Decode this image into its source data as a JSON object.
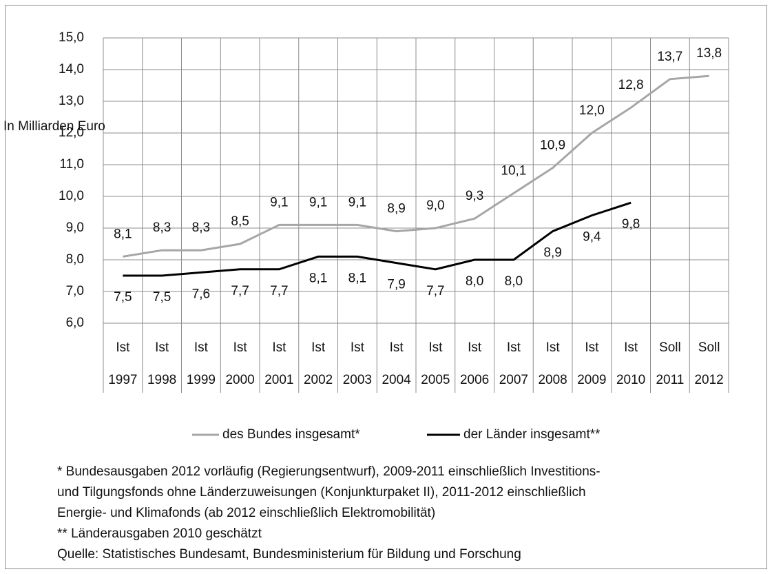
{
  "chart_data": {
    "type": "line",
    "y_label": "In Milliarden Euro",
    "categories": [
      "1997",
      "1998",
      "1999",
      "2000",
      "2001",
      "2002",
      "2003",
      "2004",
      "2005",
      "2006",
      "2007",
      "2008",
      "2009",
      "2010",
      "2011",
      "2012"
    ],
    "category_status": [
      "Ist",
      "Ist",
      "Ist",
      "Ist",
      "Ist",
      "Ist",
      "Ist",
      "Ist",
      "Ist",
      "Ist",
      "Ist",
      "Ist",
      "Ist",
      "Ist",
      "Soll",
      "Soll"
    ],
    "series": [
      {
        "name": "des Bundes insgesamt*",
        "color": "#a6a6a6",
        "values": [
          8.1,
          8.3,
          8.3,
          8.5,
          9.1,
          9.1,
          9.1,
          8.9,
          9.0,
          9.3,
          10.1,
          10.9,
          12.0,
          12.8,
          13.7,
          13.8
        ],
        "value_labels": [
          "8,1",
          "8,3",
          "8,3",
          "8,5",
          "9,1",
          "9,1",
          "9,1",
          "8,9",
          "9,0",
          "9,3",
          "10,1",
          "10,9",
          "12,0",
          "12,8",
          "13,7",
          "13,8"
        ]
      },
      {
        "name": "der Länder insgesamt**",
        "color": "#000000",
        "values": [
          7.5,
          7.5,
          7.6,
          7.7,
          7.7,
          8.1,
          8.1,
          7.9,
          7.7,
          8.0,
          8.0,
          8.9,
          9.4,
          9.8,
          null,
          null
        ],
        "value_labels": [
          "7,5",
          "7,5",
          "7,6",
          "7,7",
          "7,7",
          "8,1",
          "8,1",
          "7,9",
          "7,7",
          "8,0",
          "8,0",
          "8,9",
          "9,4",
          "9,8",
          null,
          null
        ]
      }
    ],
    "ylim": [
      6,
      15
    ],
    "yticks": [
      {
        "value": 6,
        "label": "6,0"
      },
      {
        "value": 7,
        "label": "7,0"
      },
      {
        "value": 8,
        "label": "8,0"
      },
      {
        "value": 9,
        "label": "9,0"
      },
      {
        "value": 10,
        "label": "10,0"
      },
      {
        "value": 11,
        "label": "11,0"
      },
      {
        "value": 12,
        "label": "12,0"
      },
      {
        "value": 13,
        "label": "13,0"
      },
      {
        "value": 14,
        "label": "14,0"
      },
      {
        "value": 15,
        "label": "15,0"
      }
    ],
    "grid": true,
    "legend": "bottom",
    "footnotes": [
      "* Bundesausgaben 2012 vorläufig (Regierungsentwurf), 2009-2011 einschließlich Investitions-",
      "und Tilgungsfonds ohne Länderzuweisungen (Konjunkturpaket II), 2011-2012 einschließlich",
      "Energie- und Klimafonds (ab 2012 einschließlich Elektromobilität)",
      "** Länderausgaben 2010 geschätzt",
      "Quelle: Statistisches Bundesamt, Bundesministerium für Bildung und Forschung"
    ]
  }
}
